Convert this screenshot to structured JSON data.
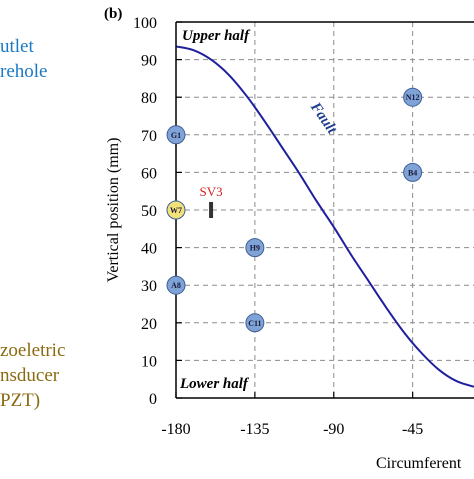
{
  "panel_label": "(b)",
  "left_legend": {
    "outlet_line1": "utlet",
    "outlet_line2": "rehole",
    "pzt_line1": "zoeletric",
    "pzt_line2": "nsducer",
    "pzt_line3": "PZT)"
  },
  "colors": {
    "axis": "#000000",
    "grid": "#8c8c8c",
    "fault_curve": "#1f1f9e",
    "fault_label": "#1f3f8f",
    "blue_marker": "#7fa3d6",
    "yellow_marker": "#f2e27a",
    "sv_label": "#d62020",
    "outlet_text": "#1b78c4",
    "pzt_text": "#8a6a10"
  },
  "chart_data": {
    "type": "scatter",
    "xlabel": "Circumferent",
    "ylabel": "Vertical position (mm)",
    "xlim": [
      -180,
      -10
    ],
    "ylim": [
      0,
      100
    ],
    "x_ticks": [
      -180,
      -135,
      -90,
      -45
    ],
    "y_ticks": [
      0,
      10,
      20,
      30,
      40,
      50,
      60,
      70,
      80,
      90,
      100
    ],
    "grid": true,
    "region_labels": {
      "upper": "Upper half",
      "lower": "Lower half"
    },
    "fault": {
      "label": "Fault",
      "x": [
        -180,
        -170,
        -160,
        -150,
        -140,
        -130,
        -120,
        -110,
        -100,
        -90,
        -80,
        -70,
        -60,
        -50,
        -40,
        -30,
        -20,
        -10
      ],
      "y": [
        93.5,
        92.5,
        90,
        86,
        80.5,
        74,
        67,
        60,
        52.5,
        45.5,
        38,
        31,
        24,
        17.5,
        12,
        7.5,
        4.5,
        3
      ]
    },
    "points": [
      {
        "label": "G1",
        "x": -180,
        "y": 70,
        "color": "blue"
      },
      {
        "label": "W7",
        "x": -180,
        "y": 50,
        "color": "yellow"
      },
      {
        "label": "A8",
        "x": -180,
        "y": 30,
        "color": "blue"
      },
      {
        "label": "H9",
        "x": -135,
        "y": 40,
        "color": "blue"
      },
      {
        "label": "C11",
        "x": -135,
        "y": 20,
        "color": "blue"
      },
      {
        "label": "N12",
        "x": -45,
        "y": 80,
        "color": "blue"
      },
      {
        "label": "B4",
        "x": -45,
        "y": 60,
        "color": "blue"
      }
    ],
    "sensor": {
      "label": "SV3",
      "x": -160,
      "y": 50
    }
  }
}
